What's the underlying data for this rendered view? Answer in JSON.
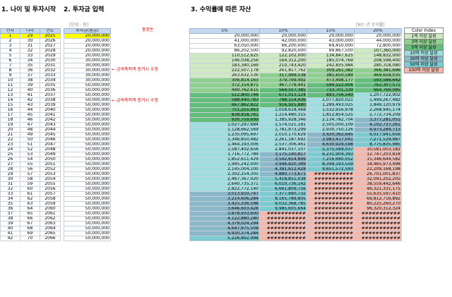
{
  "titles": {
    "age": "1. 나이 및 투자시작",
    "investment": "2. 투자금 입력",
    "assets": "3. 수익률에 따른 자산"
  },
  "notes": {
    "unit": "[단위 : 원]",
    "total": "총잣돈",
    "yield_unit": "[N는 년 수익률]",
    "memo1": "← 금여축적액 증가시 수정",
    "memo2": "← 금여축적액 증가시 수정"
  },
  "left_headers": [
    "년차",
    "나이",
    "연도"
  ],
  "invest_header": "투자금(원금)",
  "asset_headers": [
    "5%",
    "10%",
    "15%",
    "20%"
  ],
  "colors": {
    "header": "#c6d9f1",
    "highlight": "#ffff00",
    "b1": "#cfeac3",
    "b3": "#8fd08f",
    "b5": "#63be7b",
    "b10": "#9fdede",
    "b30": "#8ab8c9",
    "b50": "#7ccbd0",
    "b100": "#f4b8ac"
  },
  "legend": {
    "title": "Color Index",
    "items": [
      {
        "label": "1억 이상 달성",
        "color_key": "b1"
      },
      {
        "label": "3억 이상 달성",
        "color_key": "b3"
      },
      {
        "label": "5억 이상 달성",
        "color_key": "b5"
      },
      {
        "label": "10억 이상 달성",
        "color_key": "b10"
      },
      {
        "label": "30억 이상 달성",
        "color_key": "b30"
      },
      {
        "label": "50억 이상 달성",
        "color_key": "b50"
      },
      {
        "label": "100억 이상 달성",
        "color_key": "b100"
      }
    ]
  },
  "rows": [
    {
      "y": "1",
      "a": "29",
      "yr": "2025",
      "inv": "20,000,000",
      "v": [
        "20,000,000",
        "20,000,000",
        "20,000,000",
        "20,000,000"
      ]
    },
    {
      "y": "2",
      "a": "30",
      "yr": "2026",
      "inv": "20,000,000",
      "v": [
        "41,000,000",
        "42,000,000",
        "43,000,000",
        "44,000,000"
      ]
    },
    {
      "y": "3",
      "a": "31",
      "yr": "2027",
      "inv": "20,000,000",
      "v": [
        "63,050,000",
        "66,200,000",
        "69,450,000",
        "72,800,000"
      ]
    },
    {
      "y": "4",
      "a": "32",
      "yr": "2028",
      "inv": "20,000,000",
      "v": [
        "86,202,500",
        "92,820,000",
        "99,867,500",
        "107,360,000"
      ]
    },
    {
      "y": "5",
      "a": "33",
      "yr": "2029",
      "inv": "20,000,000",
      "v": [
        "110,512,625",
        "122,102,000",
        "134,847,625",
        "148,832,000"
      ]
    },
    {
      "y": "6",
      "a": "34",
      "yr": "2030",
      "inv": "30,000,000",
      "v": [
        "146,038,256",
        "164,312,200",
        "185,074,769",
        "208,598,400"
      ]
    },
    {
      "y": "7",
      "a": "35",
      "yr": "2031",
      "inv": "30,000,000",
      "v": [
        "183,340,169",
        "210,743,420",
        "242,835,984",
        "280,318,080"
      ]
    },
    {
      "y": "8",
      "a": "36",
      "yr": "2032",
      "inv": "30,000,000",
      "v": [
        "222,507,178",
        "261,817,762",
        "309,261,382",
        "366,381,696"
      ]
    },
    {
      "y": "9",
      "a": "37",
      "yr": "2033",
      "inv": "30,000,000",
      "v": [
        "263,632,536",
        "317,999,538",
        "385,650,589",
        "469,658,035"
      ]
    },
    {
      "y": "10",
      "a": "38",
      "yr": "2034",
      "inv": "30,000,000",
      "v": [
        "306,814,163",
        "379,799,492",
        "473,498,177",
        "593,589,642"
      ]
    },
    {
      "y": "11",
      "a": "39",
      "yr": "2035",
      "inv": "50,000,000",
      "v": [
        "372,154,871",
        "467,779,441",
        "594,522,904",
        "762,307,571"
      ]
    },
    {
      "y": "12",
      "a": "40",
      "yr": "2036",
      "inv": "50,000,000",
      "v": [
        "440,762,615",
        "564,557,385",
        "733,701,339",
        "964,769,085"
      ]
    },
    {
      "y": "13",
      "a": "41",
      "yr": "2037",
      "inv": "50,000,000",
      "v": [
        "512,800,746",
        "671,013,124",
        "893,756,540",
        "1,207,722,902"
      ]
    },
    {
      "y": "14",
      "a": "42",
      "yr": "2038",
      "inv": "50,000,000",
      "v": [
        "588,440,783",
        "788,114,436",
        "1,077,820,021",
        "1,499,267,482"
      ]
    },
    {
      "y": "15",
      "a": "43",
      "yr": "2039",
      "inv": "50,000,000",
      "v": [
        "667,862,822",
        "916,925,880",
        "1,289,493,025",
        "1,849,120,979"
      ]
    },
    {
      "y": "16",
      "a": "44",
      "yr": "2040",
      "inv": "50,000,000",
      "v": [
        "751,255,963",
        "1,058,618,468",
        "1,532,916,978",
        "2,268,945,174"
      ]
    },
    {
      "y": "17",
      "a": "45",
      "yr": "2041",
      "inv": "50,000,000",
      "v": [
        "838,818,761",
        "1,214,480,315",
        "1,812,854,525",
        "2,772,734,209"
      ]
    },
    {
      "y": "18",
      "a": "46",
      "yr": "2042",
      "inv": "50,000,000",
      "v": [
        "930,759,699",
        "1,385,928,346",
        "2,134,782,704",
        "3,377,281,051"
      ]
    },
    {
      "y": "19",
      "a": "47",
      "yr": "2043",
      "inv": "50,000,000",
      "v": [
        "1,027,297,684",
        "1,574,521,181",
        "2,505,000,109",
        "4,102,737,261"
      ]
    },
    {
      "y": "20",
      "a": "48",
      "yr": "2044",
      "inv": "50,000,000",
      "v": [
        "1,128,662,569",
        "1,781,973,299",
        "2,930,750,126",
        "4,973,284,713"
      ]
    },
    {
      "y": "21",
      "a": "49",
      "yr": "2045",
      "inv": "50,000,000",
      "v": [
        "1,235,095,697",
        "2,010,170,629",
        "3,420,362,645",
        "6,017,941,656"
      ]
    },
    {
      "y": "22",
      "a": "50",
      "yr": "2046",
      "inv": "50,000,000",
      "v": [
        "1,346,850,482",
        "2,261,187,692",
        "3,983,417,041",
        "7,271,529,987"
      ]
    },
    {
      "y": "23",
      "a": "51",
      "yr": "2047",
      "inv": "50,000,000",
      "v": [
        "1,464,193,006",
        "2,537,306,461",
        "4,630,929,598",
        "8,775,835,985"
      ]
    },
    {
      "y": "24",
      "a": "52",
      "yr": "2048",
      "inv": "50,000,000",
      "v": [
        "1,587,402,656",
        "2,841,037,107",
        "5,375,569,037",
        "10,581,003,182"
      ]
    },
    {
      "y": "25",
      "a": "53",
      "yr": "2049",
      "inv": "50,000,000",
      "v": [
        "1,716,772,789",
        "3,175,140,817",
        "6,231,904,393",
        "12,747,203,818"
      ]
    },
    {
      "y": "26",
      "a": "54",
      "yr": "2050",
      "inv": "50,000,000",
      "v": [
        "1,852,611,429",
        "3,542,654,899",
        "7,216,690,052",
        "15,346,644,582"
      ]
    },
    {
      "y": "27",
      "a": "55",
      "yr": "2051",
      "inv": "50,000,000",
      "v": [
        "1,995,242,000",
        "3,946,920,389",
        "8,349,193,559",
        "18,465,973,498"
      ]
    },
    {
      "y": "28",
      "a": "56",
      "yr": "2052",
      "inv": "50,000,000",
      "v": [
        "2,145,004,100",
        "4,391,612,428",
        "9,651,572,593",
        "22,209,168,198"
      ]
    },
    {
      "y": "29",
      "a": "57",
      "yr": "2053",
      "inv": "50,000,000",
      "v": [
        "2,302,254,305",
        "4,880,773,671",
        "###########",
        "26,701,001,837"
      ]
    },
    {
      "y": "30",
      "a": "58",
      "yr": "2054",
      "inv": "50,000,000",
      "v": [
        "2,467,367,020",
        "5,418,851,038",
        "###########",
        "32,091,202,205"
      ]
    },
    {
      "y": "31",
      "a": "59",
      "yr": "2055",
      "inv": "50,000,000",
      "v": [
        "2,640,735,371",
        "6,010,736,142",
        "###########",
        "38,559,442,646"
      ]
    },
    {
      "y": "32",
      "a": "60",
      "yr": "2056",
      "inv": "50,000,000",
      "v": [
        "2,822,772,140",
        "6,661,809,756",
        "###########",
        "46,321,331,175"
      ]
    },
    {
      "y": "33",
      "a": "61",
      "yr": "2057",
      "inv": "50,000,000",
      "v": [
        "3,013,910,747",
        "7,377,990,732",
        "###########",
        "55,635,597,410"
      ]
    },
    {
      "y": "34",
      "a": "62",
      "yr": "2058",
      "inv": "50,000,000",
      "v": [
        "3,214,606,284",
        "8,165,789,805",
        "###########",
        "66,812,716,892"
      ]
    },
    {
      "y": "35",
      "a": "63",
      "yr": "2059",
      "inv": "50,000,000",
      "v": [
        "3,425,336,598",
        "9,032,368,785",
        "###########",
        "80,225,260,270"
      ]
    },
    {
      "y": "36",
      "a": "64",
      "yr": "2060",
      "inv": "50,000,000",
      "v": [
        "3,646,603,428",
        "9,985,605,664",
        "###########",
        "96,320,312,324"
      ]
    },
    {
      "y": "37",
      "a": "65",
      "yr": "2061",
      "inv": "50,000,000",
      "v": [
        "3,878,933,600",
        "###########",
        "###########",
        "###########"
      ]
    },
    {
      "y": "38",
      "a": "66",
      "yr": "2062",
      "inv": "50,000,000",
      "v": [
        "4,122,880,280",
        "###########",
        "###########",
        "###########"
      ]
    },
    {
      "y": "39",
      "a": "67",
      "yr": "2063",
      "inv": "50,000,000",
      "v": [
        "4,379,024,294",
        "###########",
        "###########",
        "###########"
      ]
    },
    {
      "y": "40",
      "a": "68",
      "yr": "2064",
      "inv": "50,000,000",
      "v": [
        "4,647,975,508",
        "###########",
        "###########",
        "###########"
      ]
    },
    {
      "y": "41",
      "a": "69",
      "yr": "2065",
      "inv": "50,000,000",
      "v": [
        "4,930,374,284",
        "###########",
        "###########",
        "###########"
      ]
    },
    {
      "y": "42",
      "a": "70",
      "yr": "2066",
      "inv": "50,000,000",
      "v": [
        "5,226,892,998",
        "###########",
        "###########",
        "###########"
      ]
    }
  ]
}
